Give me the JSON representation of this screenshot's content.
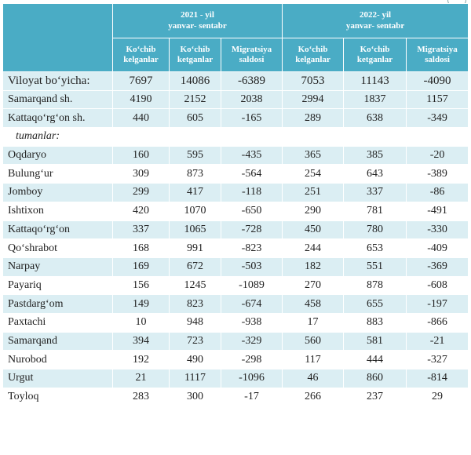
{
  "header": {
    "period1": {
      "line1": "2021 - yil",
      "line2": "yanvar- sentabr"
    },
    "period2": {
      "line1": "2022- yil",
      "line2": "yanvar- sentabr"
    },
    "col_arrived": [
      "Ko‘chib",
      "kelganlar"
    ],
    "col_left": [
      "Ko‘chib",
      "ketganlar"
    ],
    "col_saldo": [
      "Migratsiya",
      "saldosi"
    ]
  },
  "rows": [
    {
      "name": "Viloyat bo‘yicha:",
      "v": [
        "7697",
        "14086",
        "-6389",
        "7053",
        "11143",
        "-4090"
      ]
    },
    {
      "name": "Samarqand sh.",
      "v": [
        "4190",
        "2152",
        "2038",
        "2994",
        "1837",
        "1157"
      ]
    },
    {
      "name": "Kattaqo‘rg‘on sh.",
      "v": [
        "440",
        "605",
        "-165",
        "289",
        "638",
        "-349"
      ]
    },
    {
      "name": "tumanlar:",
      "v": [
        "",
        "",
        "",
        "",
        "",
        ""
      ]
    },
    {
      "name": "Oqdaryo",
      "v": [
        "160",
        "595",
        "-435",
        "365",
        "385",
        "-20"
      ]
    },
    {
      "name": "Bulung‘ur",
      "v": [
        "309",
        "873",
        "-564",
        "254",
        "643",
        "-389"
      ]
    },
    {
      "name": "Jomboy",
      "v": [
        "299",
        "417",
        "-118",
        "251",
        "337",
        "-86"
      ]
    },
    {
      "name": "Ishtixon",
      "v": [
        "420",
        "1070",
        "-650",
        "290",
        "781",
        "-491"
      ]
    },
    {
      "name": "Kattaqo‘rg‘on",
      "v": [
        "337",
        "1065",
        "-728",
        "450",
        "780",
        "-330"
      ]
    },
    {
      "name": "Qo‘shrabot",
      "v": [
        "168",
        "991",
        "-823",
        "244",
        "653",
        "-409"
      ]
    },
    {
      "name": "Narpay",
      "v": [
        "169",
        "672",
        "-503",
        "182",
        "551",
        "-369"
      ]
    },
    {
      "name": "Payariq",
      "v": [
        "156",
        "1245",
        "-1089",
        "270",
        "878",
        "-608"
      ]
    },
    {
      "name": "Pastdarg‘om",
      "v": [
        "149",
        "823",
        "-674",
        "458",
        "655",
        "-197"
      ]
    },
    {
      "name": "Paxtachi",
      "v": [
        "10",
        "948",
        "-938",
        "17",
        "883",
        "-866"
      ]
    },
    {
      "name": "Samarqand",
      "v": [
        "394",
        "723",
        "-329",
        "560",
        "581",
        "-21"
      ]
    },
    {
      "name": "Nurobod",
      "v": [
        "192",
        "490",
        "-298",
        "117",
        "444",
        "-327"
      ]
    },
    {
      "name": "Urgut",
      "v": [
        "21",
        "1117",
        "-1096",
        "46",
        "860",
        "-814"
      ]
    },
    {
      "name": "Toyloq",
      "v": [
        "283",
        "300",
        "-17",
        "266",
        "237",
        "29"
      ]
    }
  ],
  "colors": {
    "header_bg": "#4aacc5",
    "alt_row_bg": "#dbeef3"
  }
}
